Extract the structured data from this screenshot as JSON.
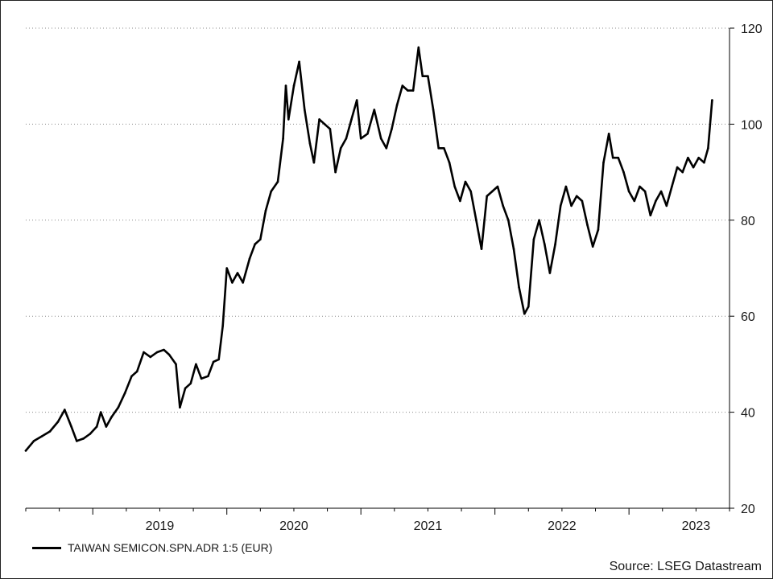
{
  "chart_data": {
    "type": "line",
    "title": "",
    "xlabel": "",
    "ylabel": "",
    "ylim": [
      20,
      120
    ],
    "y_ticks": [
      20,
      40,
      60,
      80,
      100,
      120
    ],
    "y_axis_side": "right",
    "grid": "horizontal dotted",
    "x_ticks": [
      {
        "label": "2019",
        "x": 2019.5
      },
      {
        "label": "2020",
        "x": 2020.5
      },
      {
        "label": "2021",
        "x": 2021.5
      },
      {
        "label": "2022",
        "x": 2022.5
      },
      {
        "label": "2023",
        "x": 2023.5
      }
    ],
    "x_range": [
      2018.5,
      2023.75
    ],
    "legend_placement": "bottom-left",
    "series": [
      {
        "name": "TAIWAN SEMICON.SPN.ADR 1:5 (EUR)",
        "color": "#000000",
        "points": [
          [
            2018.5,
            32
          ],
          [
            2018.56,
            34
          ],
          [
            2018.62,
            35
          ],
          [
            2018.68,
            36
          ],
          [
            2018.74,
            38
          ],
          [
            2018.79,
            40.5
          ],
          [
            2018.84,
            37
          ],
          [
            2018.88,
            34
          ],
          [
            2018.93,
            34.5
          ],
          [
            2018.98,
            35.5
          ],
          [
            2019.03,
            37
          ],
          [
            2019.06,
            40
          ],
          [
            2019.1,
            37
          ],
          [
            2019.14,
            39
          ],
          [
            2019.19,
            41
          ],
          [
            2019.24,
            44
          ],
          [
            2019.29,
            47.5
          ],
          [
            2019.33,
            48.5
          ],
          [
            2019.38,
            52.5
          ],
          [
            2019.43,
            51.5
          ],
          [
            2019.48,
            52.5
          ],
          [
            2019.53,
            53
          ],
          [
            2019.57,
            52
          ],
          [
            2019.62,
            50
          ],
          [
            2019.65,
            41
          ],
          [
            2019.69,
            45
          ],
          [
            2019.73,
            46
          ],
          [
            2019.77,
            50
          ],
          [
            2019.81,
            47
          ],
          [
            2019.86,
            47.5
          ],
          [
            2019.9,
            50.5
          ],
          [
            2019.94,
            51
          ],
          [
            2019.97,
            58
          ],
          [
            2020.0,
            70
          ],
          [
            2020.04,
            67
          ],
          [
            2020.08,
            69
          ],
          [
            2020.12,
            67
          ],
          [
            2020.17,
            72
          ],
          [
            2020.21,
            75
          ],
          [
            2020.25,
            76
          ],
          [
            2020.29,
            82
          ],
          [
            2020.33,
            86
          ],
          [
            2020.38,
            88
          ],
          [
            2020.42,
            97
          ],
          [
            2020.44,
            108
          ],
          [
            2020.46,
            101
          ],
          [
            2020.5,
            108
          ],
          [
            2020.54,
            113
          ],
          [
            2020.58,
            103
          ],
          [
            2020.62,
            96
          ],
          [
            2020.65,
            92
          ],
          [
            2020.69,
            101
          ],
          [
            2020.73,
            100
          ],
          [
            2020.77,
            99
          ],
          [
            2020.81,
            90
          ],
          [
            2020.85,
            95
          ],
          [
            2020.89,
            97
          ],
          [
            2020.93,
            101
          ],
          [
            2020.97,
            105
          ],
          [
            2021.0,
            97
          ],
          [
            2021.05,
            98
          ],
          [
            2021.1,
            103
          ],
          [
            2021.15,
            97
          ],
          [
            2021.19,
            95
          ],
          [
            2021.23,
            99
          ],
          [
            2021.27,
            104
          ],
          [
            2021.31,
            108
          ],
          [
            2021.35,
            107
          ],
          [
            2021.39,
            107
          ],
          [
            2021.43,
            116
          ],
          [
            2021.46,
            110
          ],
          [
            2021.5,
            110
          ],
          [
            2021.54,
            103
          ],
          [
            2021.58,
            95
          ],
          [
            2021.62,
            95
          ],
          [
            2021.66,
            92
          ],
          [
            2021.7,
            87
          ],
          [
            2021.74,
            84
          ],
          [
            2021.78,
            88
          ],
          [
            2021.82,
            86
          ],
          [
            2021.86,
            80
          ],
          [
            2021.9,
            74
          ],
          [
            2021.94,
            85
          ],
          [
            2021.98,
            86
          ],
          [
            2022.02,
            87
          ],
          [
            2022.06,
            83
          ],
          [
            2022.1,
            80
          ],
          [
            2022.14,
            74
          ],
          [
            2022.18,
            66
          ],
          [
            2022.22,
            60.5
          ],
          [
            2022.25,
            62
          ],
          [
            2022.29,
            76
          ],
          [
            2022.33,
            80
          ],
          [
            2022.37,
            75
          ],
          [
            2022.41,
            69
          ],
          [
            2022.45,
            75
          ],
          [
            2022.49,
            83
          ],
          [
            2022.53,
            87
          ],
          [
            2022.57,
            83
          ],
          [
            2022.61,
            85
          ],
          [
            2022.65,
            84
          ],
          [
            2022.69,
            79
          ],
          [
            2022.73,
            74.5
          ],
          [
            2022.77,
            78
          ],
          [
            2022.81,
            92
          ],
          [
            2022.85,
            98
          ],
          [
            2022.88,
            93
          ],
          [
            2022.92,
            93
          ],
          [
            2022.96,
            90
          ],
          [
            2023.0,
            86
          ],
          [
            2023.04,
            84
          ],
          [
            2023.08,
            87
          ],
          [
            2023.12,
            86
          ],
          [
            2023.16,
            81
          ],
          [
            2023.2,
            84
          ],
          [
            2023.24,
            86
          ],
          [
            2023.28,
            83
          ],
          [
            2023.32,
            87
          ],
          [
            2023.36,
            91
          ],
          [
            2023.4,
            90
          ],
          [
            2023.44,
            93
          ],
          [
            2023.48,
            91
          ],
          [
            2023.52,
            93
          ],
          [
            2023.56,
            92
          ],
          [
            2023.59,
            95
          ],
          [
            2023.62,
            105
          ]
        ]
      }
    ]
  },
  "legend": {
    "label": "TAIWAN SEMICON.SPN.ADR 1:5 (EUR)"
  },
  "source": "Source: LSEG Datastream"
}
